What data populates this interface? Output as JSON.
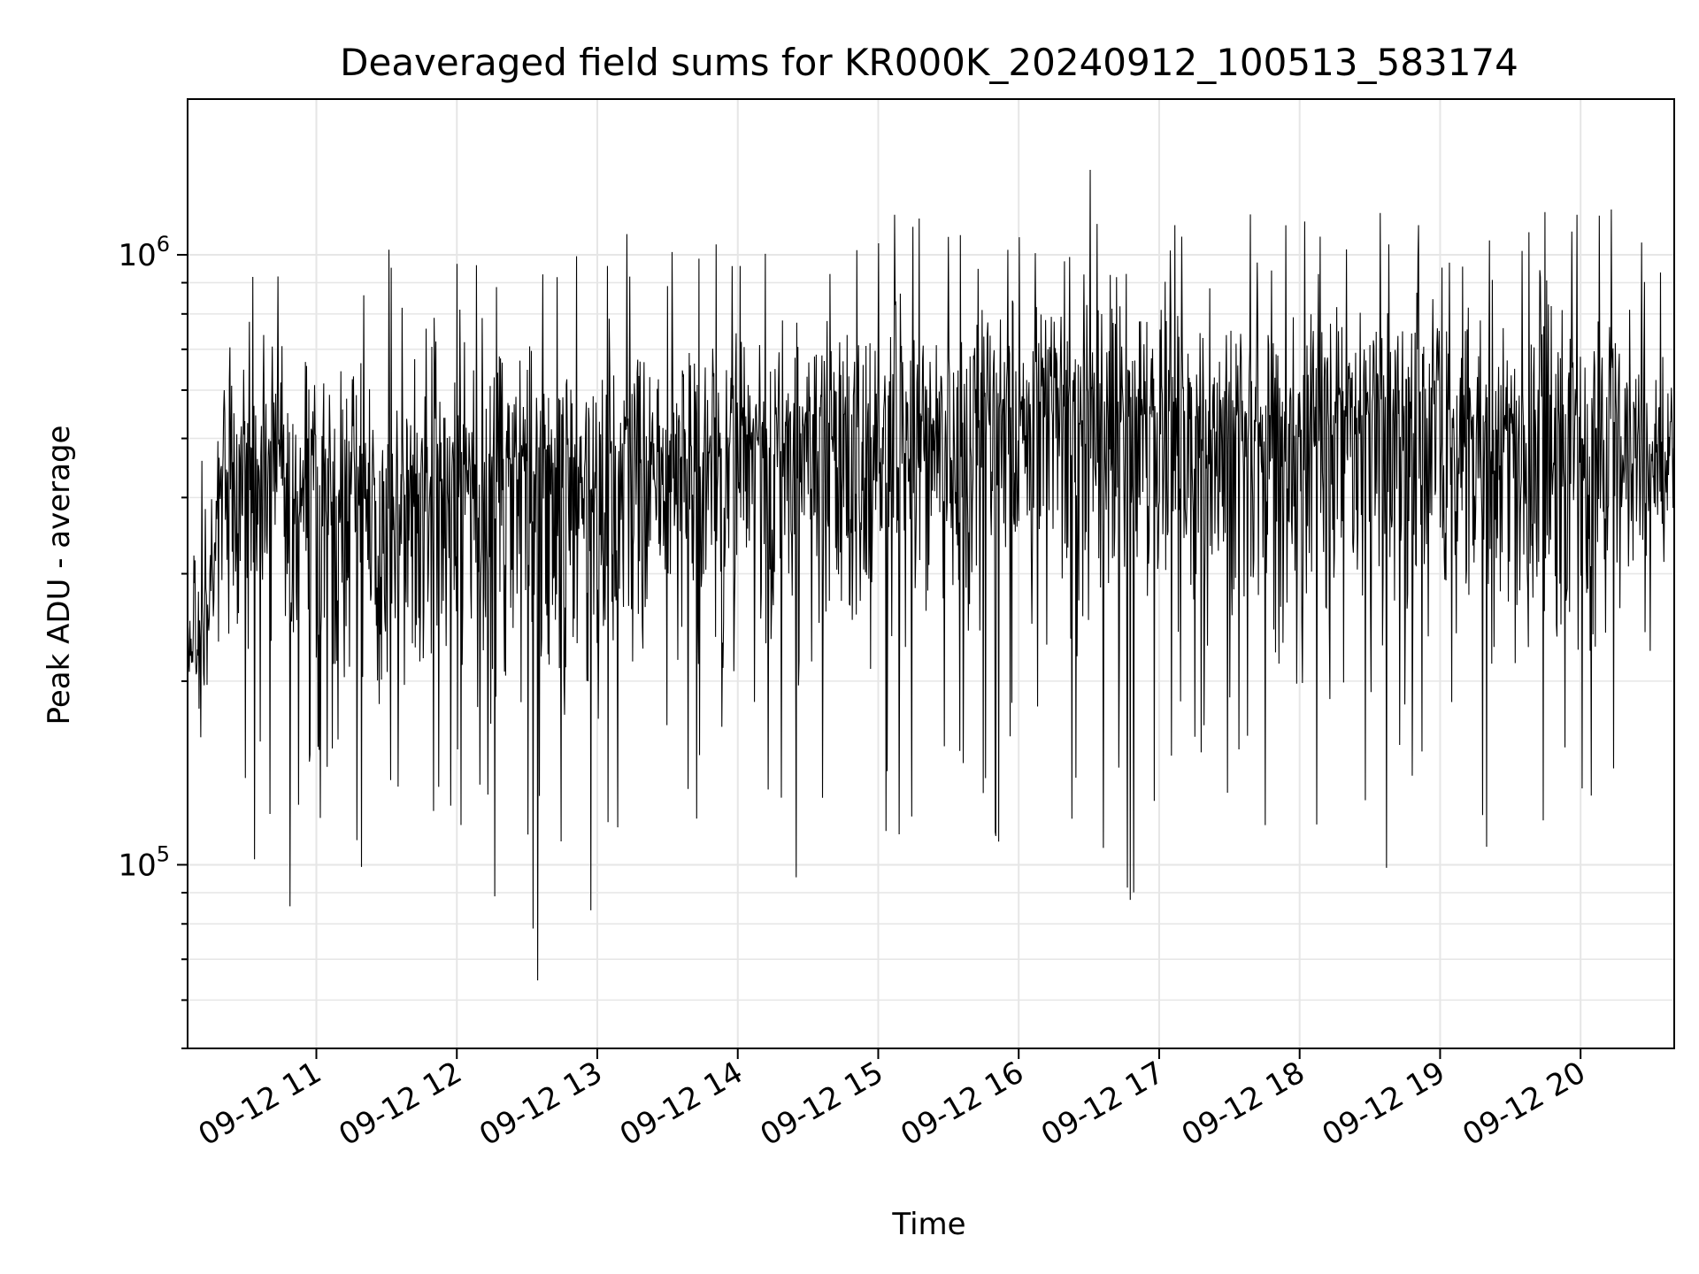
{
  "chart_data": {
    "type": "line",
    "title": "Deaveraged field sums for KR000K_20240912_100513_583174",
    "xlabel": "Time",
    "ylabel": "Peak ADU - average",
    "x_start": "2024-09-12 10:05",
    "x_end": "2024-09-12 20:40",
    "x_ticks": [
      "09-12 11",
      "09-12 12",
      "09-12 13",
      "09-12 14",
      "09-12 15",
      "09-12 16",
      "09-12 17",
      "09-12 18",
      "09-12 19",
      "09-12 20"
    ],
    "y_scale": "log",
    "ylim": [
      50000,
      1800000
    ],
    "y_ticks": [
      {
        "value": 100000,
        "base": "10",
        "exp": "5"
      },
      {
        "value": 1000000,
        "base": "10",
        "exp": "6"
      }
    ],
    "grid": true,
    "line_color": "#000000",
    "series": [
      {
        "x_hours": [
          10.08,
          10.17,
          10.25,
          10.33,
          10.5,
          10.67,
          10.83,
          11.0,
          11.17,
          11.33,
          11.5,
          11.67,
          11.83,
          12.0,
          12.17,
          12.33,
          12.5,
          12.67,
          12.83,
          13.0,
          13.17,
          13.33,
          13.5,
          13.67,
          13.83,
          14.0,
          14.17,
          14.33,
          14.5,
          14.67,
          14.83,
          15.0,
          15.17,
          15.33,
          15.5,
          15.67,
          15.83,
          16.0,
          16.17,
          16.33,
          16.5,
          16.67,
          16.83,
          17.0,
          17.17,
          17.33,
          17.5,
          17.67,
          17.83,
          18.0,
          18.17,
          18.33,
          18.5,
          18.67,
          18.83,
          19.0,
          19.17,
          19.33,
          19.5,
          19.67,
          19.83,
          20.0,
          20.17,
          20.33,
          20.5,
          20.67
        ],
        "median": [
          220000,
          230000,
          300000,
          420000,
          440000,
          430000,
          420000,
          400000,
          380000,
          410000,
          400000,
          410000,
          420000,
          430000,
          440000,
          440000,
          420000,
          440000,
          420000,
          440000,
          450000,
          440000,
          460000,
          450000,
          470000,
          480000,
          500000,
          500000,
          510000,
          520000,
          520000,
          500000,
          520000,
          500000,
          530000,
          520000,
          550000,
          530000,
          540000,
          550000,
          540000,
          530000,
          520000,
          540000,
          510000,
          520000,
          500000,
          510000,
          500000,
          480000,
          520000,
          540000,
          560000,
          550000,
          540000,
          500000,
          500000,
          490000,
          500000,
          480000,
          490000,
          480000,
          500000,
          540000,
          470000,
          450000
        ],
        "max": [
          320000,
          600000,
          620000,
          720000,
          1010000,
          820000,
          1160000,
          1130000,
          1040000,
          1050000,
          1250000,
          780000,
          1020000,
          1030000,
          1060000,
          1120000,
          1020000,
          1000000,
          1030000,
          1050000,
          1290000,
          1060000,
          1030000,
          1100000,
          1130000,
          1110000,
          1150000,
          1150000,
          1070000,
          1170000,
          1100000,
          1210000,
          1330000,
          1240000,
          1430000,
          1220000,
          1100000,
          1160000,
          1270000,
          1190000,
          1470000,
          1130000,
          1180000,
          1120000,
          1230000,
          1150000,
          1240000,
          1160000,
          1100000,
          1200000,
          1150000,
          1170000,
          1400000,
          1180000,
          1220000,
          1160000,
          1150000,
          1100000,
          1160000,
          1180000,
          1200000,
          1280000,
          1290000,
          1190000,
          1140000,
          950000
        ],
        "min": [
          200000,
          125000,
          120000,
          150000,
          108000,
          86000,
          80000,
          118000,
          100000,
          98000,
          79000,
          73000,
          72000,
          118000,
          86000,
          72000,
          66000,
          62000,
          78000,
          70000,
          115000,
          130000,
          104000,
          106000,
          89000,
          92000,
          95000,
          92000,
          94000,
          95000,
          89000,
          96000,
          87000,
          110000,
          112000,
          104000,
          100000,
          112000,
          128000,
          105000,
          110000,
          79000,
          81000,
          104000,
          100000,
          100000,
          94000,
          96000,
          98000,
          82000,
          73000,
          90000,
          87000,
          88000,
          84000,
          100000,
          98000,
          104000,
          78000,
          90000,
          67000,
          100000,
          104000,
          128000,
          220000,
          190000
        ]
      }
    ]
  }
}
